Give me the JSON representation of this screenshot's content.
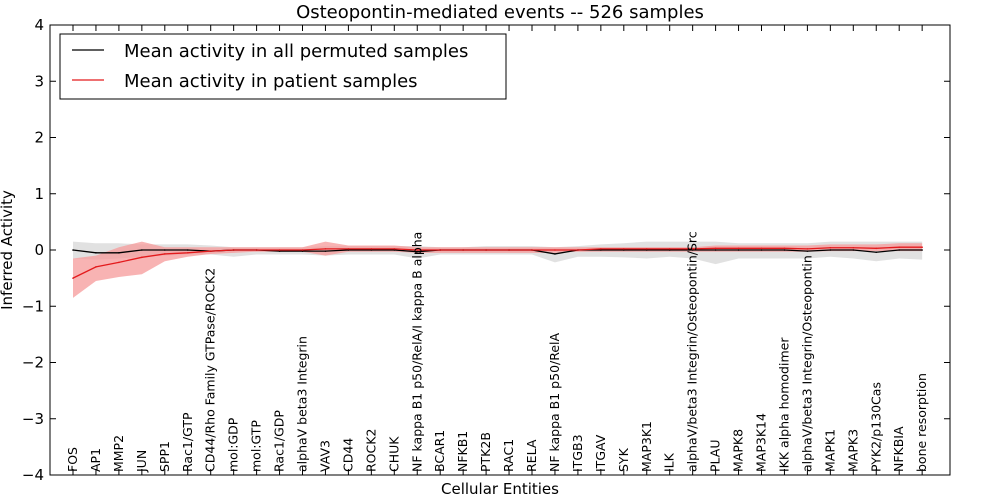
{
  "chart_data": {
    "type": "line",
    "title": "Osteopontin-mediated events -- 526 samples",
    "xlabel": "Cellular Entities",
    "ylabel": "Inferred Activity",
    "ylim": [
      -4,
      4
    ],
    "yticks": [
      -4,
      -3,
      -2,
      -1,
      0,
      1,
      2,
      3,
      4
    ],
    "ytick_labels": [
      "−4",
      "−3",
      "−2",
      "−1",
      "0",
      "1",
      "2",
      "3",
      "4"
    ],
    "categories": [
      "FOS",
      "AP1",
      "MMP2",
      "JUN",
      "SPP1",
      "Rac1/GTP",
      "CD44/Rho Family GTPase/ROCK2",
      "mol:GDP",
      "mol:GTP",
      "Rac1/GDP",
      "alphaV beta3 Integrin",
      "VAV3",
      "CD44",
      "ROCK2",
      "CHUK",
      "NF kappa B1 p50/RelA/I kappa B alpha",
      "BCAR1",
      "NFKB1",
      "PTK2B",
      "RAC1",
      "RELA",
      "NF kappa B1 p50/RelA",
      "ITGB3",
      "ITGAV",
      "SYK",
      "MAP3K1",
      "ILK",
      "alphaV/beta3 Integrin/Osteopontin/Src",
      "PLAU",
      "MAPK8",
      "MAP3K14",
      "IKK alpha homodimer",
      "alphaV/beta3 Integrin/Osteopontin",
      "MAPK1",
      "MAPK3",
      "PYK2/p130Cas",
      "NFKBIA",
      "bone resorption"
    ],
    "legend": {
      "position": "top-left",
      "entries": [
        "Mean activity in all permuted samples",
        "Mean activity in patient samples"
      ]
    },
    "series": [
      {
        "name": "Mean activity in all permuted samples",
        "color": "#000000",
        "values": [
          0.0,
          -0.05,
          -0.05,
          0.0,
          0.0,
          0.0,
          -0.02,
          0.0,
          0.0,
          -0.02,
          -0.02,
          -0.02,
          0.0,
          0.0,
          0.0,
          -0.03,
          0.0,
          0.0,
          0.0,
          0.0,
          0.0,
          -0.07,
          0.0,
          0.0,
          0.0,
          0.0,
          0.0,
          0.0,
          0.0,
          0.0,
          0.0,
          0.0,
          -0.02,
          0.0,
          0.0,
          -0.04,
          0.0,
          0.0
        ],
        "band_upper": [
          0.15,
          0.12,
          0.12,
          0.1,
          0.1,
          0.1,
          0.08,
          0.05,
          0.05,
          0.05,
          0.05,
          0.07,
          0.07,
          0.07,
          0.07,
          0.07,
          0.05,
          0.05,
          0.07,
          0.07,
          0.07,
          0.05,
          0.07,
          0.1,
          0.12,
          0.15,
          0.15,
          0.15,
          0.15,
          0.12,
          0.12,
          0.12,
          0.12,
          0.15,
          0.15,
          0.15,
          0.15,
          0.15
        ],
        "band_lower": [
          -0.15,
          -0.17,
          -0.15,
          -0.12,
          -0.1,
          -0.08,
          -0.08,
          -0.12,
          -0.08,
          -0.08,
          -0.08,
          -0.1,
          -0.08,
          -0.08,
          -0.08,
          -0.15,
          -0.08,
          -0.08,
          -0.08,
          -0.08,
          -0.08,
          -0.22,
          -0.12,
          -0.12,
          -0.13,
          -0.15,
          -0.12,
          -0.15,
          -0.25,
          -0.15,
          -0.15,
          -0.15,
          -0.15,
          -0.12,
          -0.15,
          -0.2,
          -0.15,
          -0.17
        ],
        "band_color": "#bdbdbd"
      },
      {
        "name": "Mean activity in patient samples",
        "color": "#e31a1c",
        "values": [
          -0.5,
          -0.3,
          -0.22,
          -0.13,
          -0.07,
          -0.05,
          -0.02,
          0.0,
          0.0,
          0.0,
          0.0,
          0.02,
          0.02,
          0.02,
          0.02,
          0.0,
          0.0,
          0.0,
          0.0,
          0.0,
          0.0,
          0.0,
          0.0,
          0.02,
          0.02,
          0.02,
          0.02,
          0.02,
          0.03,
          0.03,
          0.03,
          0.03,
          0.02,
          0.04,
          0.04,
          0.03,
          0.05,
          0.05
        ],
        "band_upper": [
          -0.15,
          -0.1,
          0.05,
          0.15,
          0.05,
          0.05,
          0.05,
          0.05,
          0.05,
          0.05,
          0.05,
          0.15,
          0.08,
          0.08,
          0.08,
          0.05,
          0.05,
          0.05,
          0.05,
          0.05,
          0.05,
          0.05,
          0.05,
          0.05,
          0.05,
          0.05,
          0.05,
          0.05,
          0.08,
          0.08,
          0.08,
          0.08,
          0.08,
          0.1,
          0.1,
          0.1,
          0.12,
          0.12
        ],
        "band_lower": [
          -0.85,
          -0.55,
          -0.48,
          -0.43,
          -0.2,
          -0.12,
          -0.07,
          -0.05,
          -0.03,
          -0.03,
          -0.03,
          -0.1,
          -0.03,
          -0.03,
          -0.03,
          -0.05,
          -0.05,
          -0.05,
          -0.05,
          -0.05,
          -0.05,
          -0.05,
          -0.03,
          -0.03,
          -0.03,
          -0.03,
          -0.03,
          -0.03,
          -0.03,
          -0.03,
          -0.03,
          -0.03,
          -0.03,
          -0.02,
          -0.02,
          -0.02,
          -0.02,
          -0.02
        ],
        "band_color": "#f59a9a"
      }
    ]
  }
}
